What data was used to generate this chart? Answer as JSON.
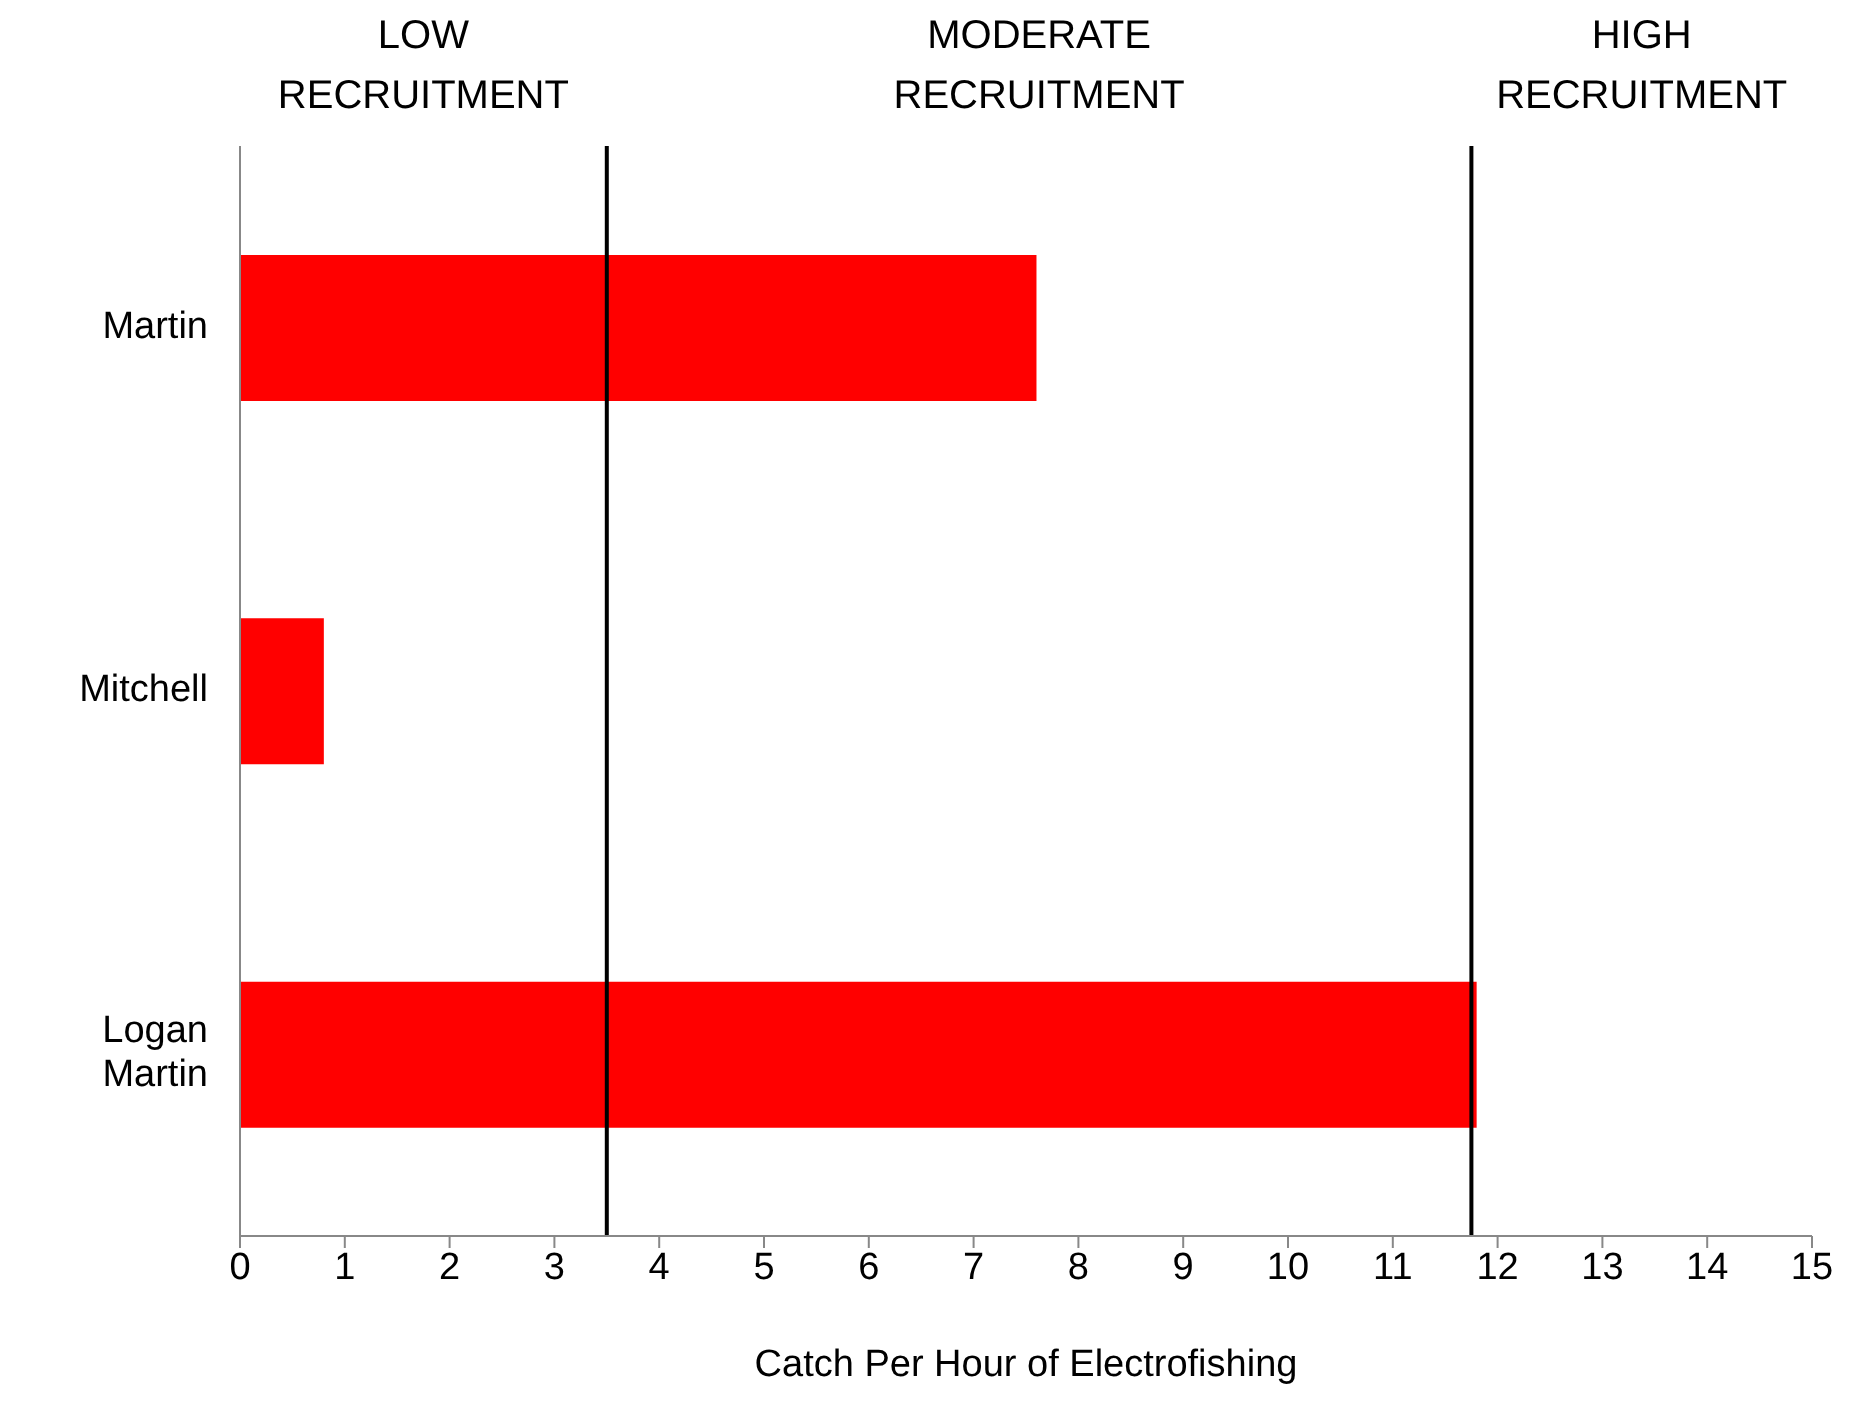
{
  "chart_data": {
    "type": "bar",
    "orientation": "horizontal",
    "xlabel": "Catch Per Hour of Electrofishing",
    "categories": [
      "Martin",
      "Mitchell",
      "Logan Martin"
    ],
    "values": [
      7.6,
      0.8,
      11.8
    ],
    "color": "#ff0000",
    "xlim": [
      0,
      15
    ],
    "xticks": [
      0,
      1,
      2,
      3,
      4,
      5,
      6,
      7,
      8,
      9,
      10,
      11,
      12,
      13,
      14,
      15
    ],
    "grid": false,
    "ref_lines": [
      {
        "axis": "x",
        "value": 3.5,
        "color": "#000000"
      },
      {
        "axis": "x",
        "value": 11.75,
        "color": "#000000"
      }
    ],
    "annotations": [
      "LOW\nRECRUITMENT",
      "MODERATE\nRECRUITMENT",
      "HIGH\nRECRUITMENT"
    ]
  }
}
